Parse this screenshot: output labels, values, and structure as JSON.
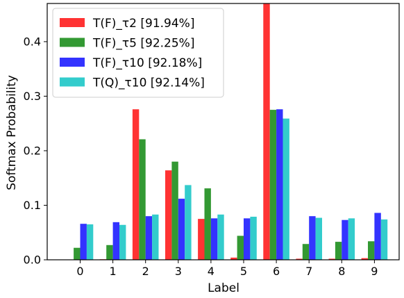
{
  "chart_data": {
    "type": "bar",
    "xlabel": "Label",
    "ylabel": "Softmax Probability",
    "categories": [
      "0",
      "1",
      "2",
      "3",
      "4",
      "5",
      "6",
      "7",
      "8",
      "9"
    ],
    "ylim": [
      0,
      0.47
    ],
    "yticks": [
      "0.0",
      "0.1",
      "0.2",
      "0.3",
      "0.4"
    ],
    "ytick_values": [
      0.0,
      0.1,
      0.2,
      0.3,
      0.4
    ],
    "legend_position": "top-left",
    "grid": false,
    "series": [
      {
        "name": "T(F)_τ2 [91.94%]",
        "color": "#ff3333",
        "values": [
          0.0,
          0.001,
          0.276,
          0.164,
          0.075,
          0.004,
          0.47,
          0.002,
          0.002,
          0.003
        ]
      },
      {
        "name": "T(F)_τ5 [92.25%]",
        "color": "#339933",
        "values": [
          0.022,
          0.027,
          0.221,
          0.18,
          0.131,
          0.044,
          0.275,
          0.029,
          0.033,
          0.034
        ]
      },
      {
        "name": "T(F)_τ10 [92.18%]",
        "color": "#3333ff",
        "values": [
          0.066,
          0.069,
          0.08,
          0.112,
          0.076,
          0.076,
          0.276,
          0.08,
          0.073,
          0.086
        ]
      },
      {
        "name": "T(Q)_τ10 [92.14%]",
        "color": "#33cccc",
        "values": [
          0.065,
          0.064,
          0.083,
          0.137,
          0.083,
          0.079,
          0.259,
          0.077,
          0.076,
          0.074
        ]
      }
    ]
  }
}
